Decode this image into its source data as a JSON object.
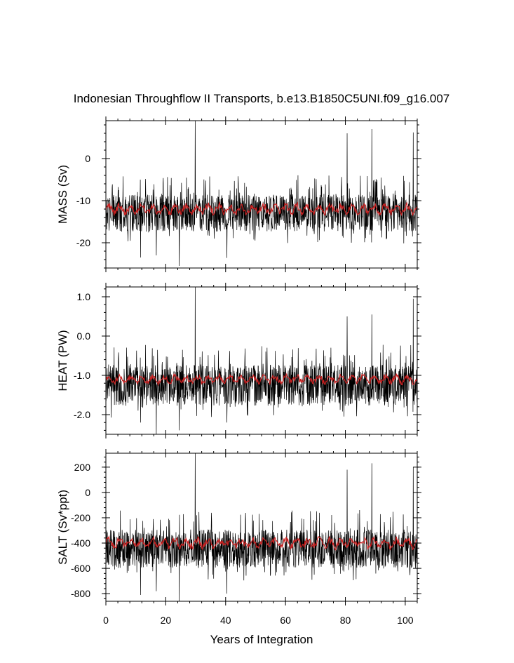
{
  "title": "Indonesian Throughflow II Transports, b.e13.B1850C5UNI.f09_g16.007",
  "xlabel": "Years of Integration",
  "colors": {
    "series": "#000000",
    "smooth": "#cc2222"
  },
  "chart_data": [
    {
      "type": "line",
      "name": "mass",
      "ylabel": "MASS (Sv)",
      "xlim": [
        0,
        104
      ],
      "ylim": [
        -26,
        9
      ],
      "x_ticks": [
        "0",
        "20",
        "40",
        "60",
        "80",
        "100"
      ],
      "y_ticks": [
        {
          "value": 0,
          "label": "0"
        },
        {
          "value": -10,
          "label": "-10"
        },
        {
          "value": -20,
          "label": "-20"
        }
      ],
      "series": [
        {
          "kind": "monthly",
          "baseline": -12.5,
          "noise_down": 5.5,
          "spike_up": 9.0,
          "extremes": [
            [
              29.8,
              9.0
            ],
            [
              88.8,
              7.0
            ],
            [
              102.7,
              6.2
            ],
            [
              80.6,
              6.0
            ],
            [
              24.5,
              -25.5
            ],
            [
              11.6,
              -23.5
            ],
            [
              40.4,
              -23.6
            ],
            [
              16.8,
              -23.0
            ]
          ]
        },
        {
          "kind": "smoothed",
          "baseline": -12.0,
          "amplitude": 1.3
        }
      ]
    },
    {
      "type": "line",
      "name": "heat",
      "ylabel": "HEAT (PW)",
      "xlim": [
        0,
        104
      ],
      "ylim": [
        -2.5,
        1.25
      ],
      "x_ticks": [
        "0",
        "20",
        "40",
        "60",
        "80",
        "100"
      ],
      "y_ticks": [
        {
          "value": 1.0,
          "label": "1.0"
        },
        {
          "value": 0.0,
          "label": "0.0"
        },
        {
          "value": -1.0,
          "label": "-1.0"
        },
        {
          "value": -2.0,
          "label": "-2.0"
        }
      ],
      "series": [
        {
          "kind": "monthly",
          "baseline": -1.2,
          "noise_down": 0.65,
          "spike_up": 1.05,
          "extremes": [
            [
              29.8,
              1.25
            ],
            [
              102.7,
              0.95
            ],
            [
              88.8,
              0.55
            ],
            [
              80.6,
              0.5
            ],
            [
              16.8,
              -2.5
            ],
            [
              24.5,
              -2.4
            ],
            [
              11.6,
              -2.2
            ],
            [
              40.4,
              -2.2
            ]
          ]
        },
        {
          "kind": "smoothed",
          "baseline": -1.1,
          "amplitude": 0.12
        }
      ]
    },
    {
      "type": "line",
      "name": "salt",
      "ylabel": "SALT (Sv*ppt)",
      "xlim": [
        0,
        104
      ],
      "ylim": [
        -860,
        310
      ],
      "x_ticks": [
        "0",
        "20",
        "40",
        "60",
        "80",
        "100"
      ],
      "y_ticks": [
        {
          "value": 200,
          "label": "200"
        },
        {
          "value": 0,
          "label": "0"
        },
        {
          "value": -200,
          "label": "-200"
        },
        {
          "value": -400,
          "label": "-400"
        },
        {
          "value": -600,
          "label": "-600"
        },
        {
          "value": -800,
          "label": "-800"
        }
      ],
      "series": [
        {
          "kind": "monthly",
          "baseline": -430,
          "noise_down": 190,
          "spike_up": 310,
          "extremes": [
            [
              29.8,
              310
            ],
            [
              88.8,
              230
            ],
            [
              102.7,
              200
            ],
            [
              80.6,
              180
            ],
            [
              24.5,
              -860
            ],
            [
              11.6,
              -810
            ],
            [
              40.4,
              -800
            ],
            [
              16.8,
              -780
            ]
          ]
        },
        {
          "kind": "smoothed",
          "baseline": -400,
          "amplitude": 45
        }
      ]
    }
  ]
}
